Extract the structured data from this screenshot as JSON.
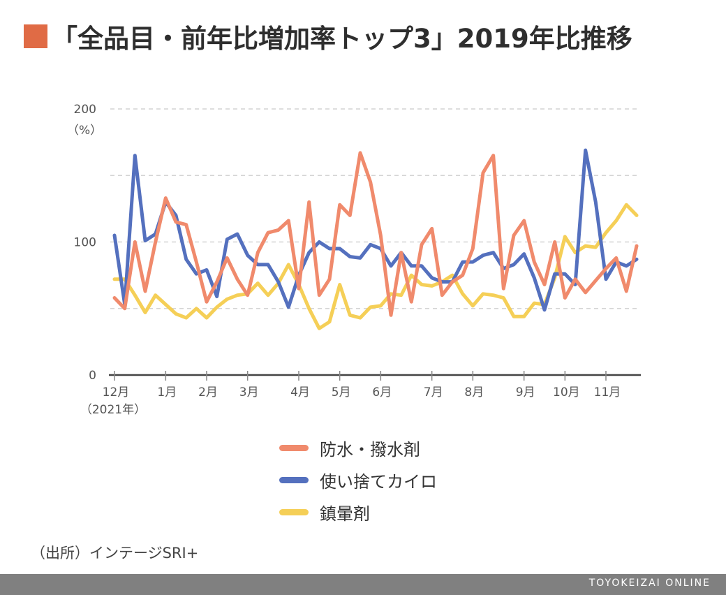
{
  "header": {
    "title": "「全品目・前年比増加率トップ3」2019年比推移",
    "accent_color": "#e06b45"
  },
  "chart_data": {
    "type": "line",
    "title": "「全品目・前年比増加率トップ3」2019年比推移",
    "ylabel": "（%）",
    "ylim": [
      0,
      200
    ],
    "y_ticks": [
      0,
      100,
      200
    ],
    "gridlines": [
      50,
      100,
      150,
      200
    ],
    "grid": true,
    "legend_position": "bottom",
    "x_count": 52,
    "x_ticks": [
      {
        "index": 0,
        "label": "12月",
        "sublabel": "（2021年）"
      },
      {
        "index": 5,
        "label": "1月"
      },
      {
        "index": 9,
        "label": "2月"
      },
      {
        "index": 13,
        "label": "3月"
      },
      {
        "index": 18,
        "label": "4月"
      },
      {
        "index": 22,
        "label": "5月"
      },
      {
        "index": 26,
        "label": "6月"
      },
      {
        "index": 31,
        "label": "7月"
      },
      {
        "index": 35,
        "label": "8月"
      },
      {
        "index": 40,
        "label": "9月"
      },
      {
        "index": 44,
        "label": "10月"
      },
      {
        "index": 48,
        "label": "11月"
      }
    ],
    "series": [
      {
        "name": "防水・撥水剤",
        "color": "#f08a6c",
        "values": [
          58,
          50,
          100,
          63,
          100,
          133,
          115,
          113,
          85,
          55,
          70,
          88,
          72,
          60,
          92,
          107,
          109,
          116,
          65,
          130,
          60,
          72,
          128,
          120,
          167,
          145,
          105,
          45,
          92,
          55,
          98,
          110,
          60,
          70,
          75,
          95,
          152,
          165,
          65,
          105,
          116,
          85,
          68,
          100,
          58,
          72,
          62,
          71,
          80,
          88,
          63,
          97
        ]
      },
      {
        "name": "使い捨てカイロ",
        "color": "#5470be",
        "values": [
          105,
          53,
          165,
          101,
          106,
          130,
          120,
          87,
          76,
          79,
          59,
          102,
          106,
          90,
          83,
          83,
          70,
          51,
          75,
          92,
          100,
          95,
          95,
          89,
          88,
          98,
          95,
          82,
          92,
          82,
          82,
          73,
          70,
          70,
          85,
          85,
          90,
          92,
          80,
          83,
          91,
          73,
          49,
          76,
          76,
          68,
          169,
          130,
          72,
          85,
          82,
          87
        ]
      },
      {
        "name": "鎮暈剤",
        "color": "#f5cf57",
        "values": [
          72,
          72,
          60,
          47,
          60,
          53,
          46,
          43,
          50,
          43,
          51,
          57,
          60,
          61,
          69,
          60,
          69,
          83,
          68,
          50,
          35,
          40,
          68,
          45,
          43,
          51,
          52,
          61,
          60,
          75,
          68,
          67,
          70,
          75,
          61,
          52,
          61,
          60,
          58,
          44,
          44,
          54,
          53,
          73,
          104,
          92,
          97,
          96,
          107,
          116,
          128,
          120
        ]
      }
    ]
  },
  "source": {
    "text": "（出所）インテージSRI+"
  },
  "footer": {
    "brand": "TOYOKEIZAI ONLINE"
  }
}
